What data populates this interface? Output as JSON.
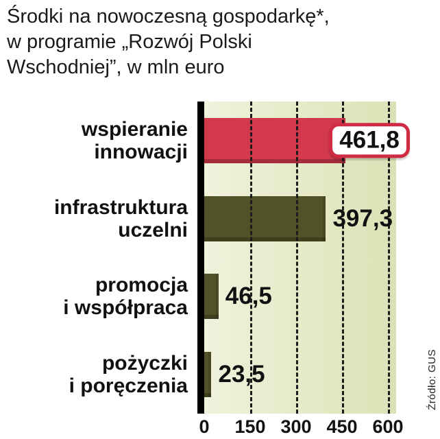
{
  "title": {
    "full": "Środki na nowoczesną gospodarkę*, w programie „Rozwój Polski Wschodniej”, w mln euro",
    "lines": [
      "Środki na nowoczesną gospodarkę*,",
      "w programie „Rozwój Polski",
      "Wschodniej”, w mln euro"
    ]
  },
  "source": "Źródło: GUS",
  "chart_data": {
    "type": "bar",
    "orientation": "horizontal",
    "title": "Środki na nowoczesną gospodarkę*, w programie „Rozwój Polski Wschodniej”, w mln euro",
    "unit": "mln euro",
    "categories": [
      "wspieranie innowacji",
      "infrastruktura uczelni",
      "promocja i współpraca",
      "pożyczki i poręczenia"
    ],
    "category_lines": [
      [
        "wspieranie",
        "innowacji"
      ],
      [
        "infrastruktura",
        "uczelni"
      ],
      [
        "promocja",
        "i współpraca"
      ],
      [
        "pożyczki",
        "i poręczenia"
      ]
    ],
    "values": [
      461.8,
      397.3,
      46.5,
      23.5
    ],
    "value_labels": [
      "461,8",
      "397,3",
      "46,5",
      "23,5"
    ],
    "bar_colors": [
      "#d2394c",
      "#515227",
      "#515227",
      "#515227"
    ],
    "highlighted_index": 0,
    "xlim": [
      0,
      600
    ],
    "x_ticks": [
      0,
      150,
      300,
      450,
      600
    ],
    "x_tick_labels": [
      "0",
      "150",
      "300",
      "450",
      "600"
    ],
    "grid": "dashed-vertical",
    "legend": "none",
    "colors": {
      "highlight": "#d2394c",
      "bar": "#515227",
      "plot_bg_start": "#f0f2dc",
      "plot_bg_end": "#dce2b6",
      "text": "#111111"
    }
  }
}
